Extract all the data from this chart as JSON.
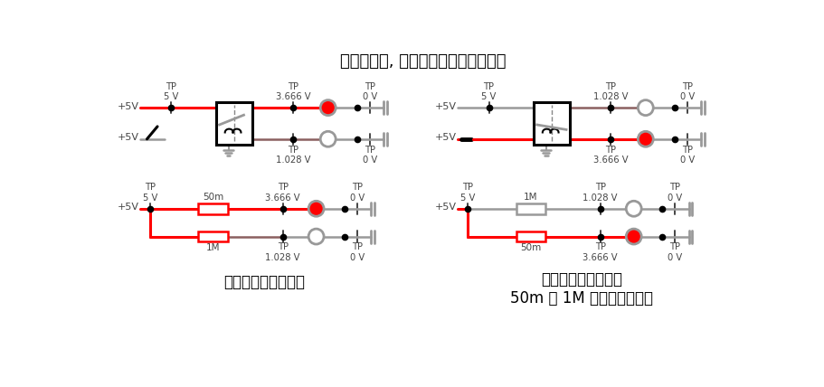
{
  "title": "形成回路后, 电流流过电阻产生电压降",
  "subtitle_left": "开关断开的等价对比",
  "subtitle_right": "开关闭合的等价对比\n50m 和 1M 的电阻交换位置",
  "red": "#FF0000",
  "gray": "#999999",
  "dark_gray": "#444444",
  "black": "#000000",
  "white": "#FFFFFF",
  "brown": "#8B6060"
}
